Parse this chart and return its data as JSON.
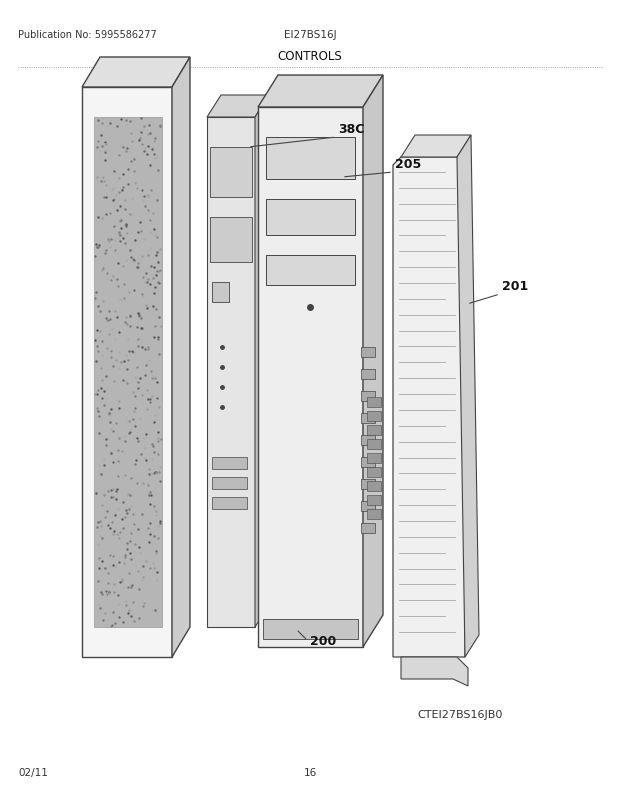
{
  "title": "CONTROLS",
  "pub_no": "Publication No: 5995586277",
  "model": "EI27BS16J",
  "model_code": "CTEI27BS16JB0",
  "date": "02/11",
  "page": "16",
  "bg_color": "#ffffff",
  "text_color": "#222222",
  "gray_dark": "#444444",
  "gray_med": "#888888",
  "gray_light": "#cccccc",
  "gray_fill": "#e8e8e8",
  "door_color": "#f2f2f2",
  "texture_color": "#b0b0b0",
  "pcb_color": "#e0e0e0",
  "cp_color": "#efefef",
  "fp_color": "#f8f8f8"
}
